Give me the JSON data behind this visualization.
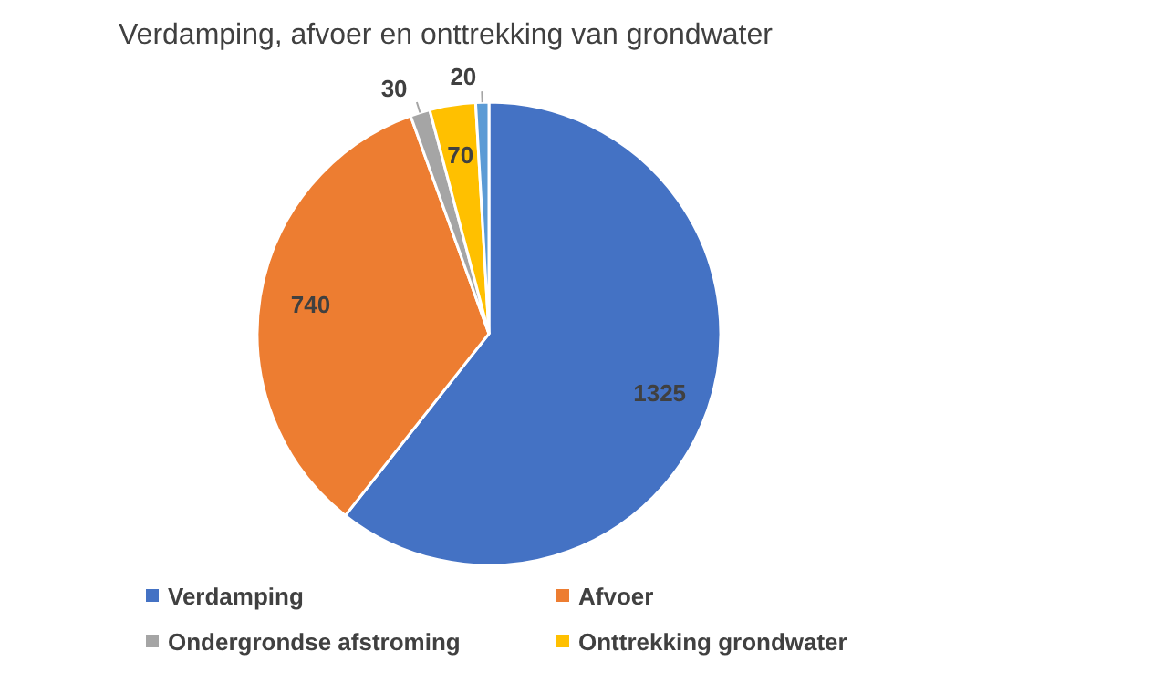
{
  "chart_data": {
    "type": "pie",
    "title": "Verdamping, afvoer en onttrekking van grondwater",
    "categories": [
      "Verdamping",
      "Afvoer",
      "Ondergrondse afstroming",
      "Onttrekking grondwater",
      null
    ],
    "values": [
      1325,
      740,
      30,
      70,
      20
    ],
    "colors": [
      "#4472c4",
      "#ed7d31",
      "#a5a5a5",
      "#ffc000",
      "#5b9bd5"
    ],
    "data_labels": true,
    "legend": "bottom"
  }
}
